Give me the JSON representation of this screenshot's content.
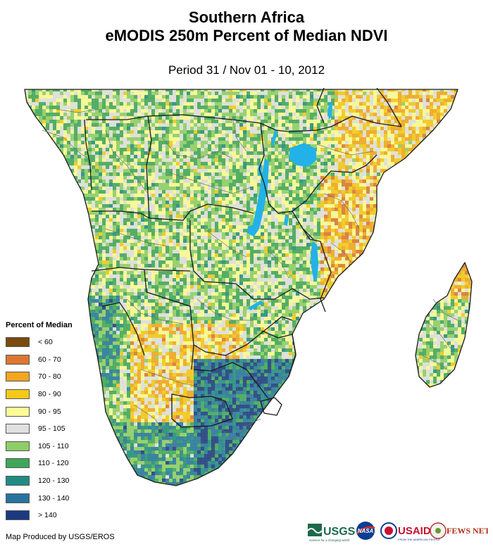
{
  "title": {
    "line1": "Southern Africa",
    "line2": "eMODIS 250m Percent of Median NDVI"
  },
  "subtitle": "Period 31 / Nov 01 - 10, 2012",
  "legend": {
    "title": "Percent of Median",
    "items": [
      {
        "label": "< 60",
        "color": "#7a4a0e"
      },
      {
        "label": "60 - 70",
        "color": "#db7730"
      },
      {
        "label": "70 - 80",
        "color": "#f2a61e"
      },
      {
        "label": "80 - 90",
        "color": "#f5c918"
      },
      {
        "label": "90 - 95",
        "color": "#fdfb97"
      },
      {
        "label": "95 - 105",
        "color": "#e0e0e0"
      },
      {
        "label": "105 - 110",
        "color": "#8dcf66"
      },
      {
        "label": "110 - 120",
        "color": "#3fa65a"
      },
      {
        "label": "120 - 130",
        "color": "#1f8c82"
      },
      {
        "label": "130 - 140",
        "color": "#2574a0"
      },
      {
        "label": "> 140",
        "color": "#1b3a82"
      }
    ]
  },
  "credit": "Map Produced by USGS/EROS",
  "logos": {
    "usgs": "USGS",
    "usgs_tagline": "science for a changing world",
    "nasa": "NASA",
    "usaid": "USAID",
    "usaid_tagline": "FROM THE AMERICAN PEOPLE",
    "fews": "FEWS NET"
  },
  "colors": {
    "water": "#22b2e8",
    "border": "#1a1a1a",
    "land_base": "#d6dcb0"
  }
}
